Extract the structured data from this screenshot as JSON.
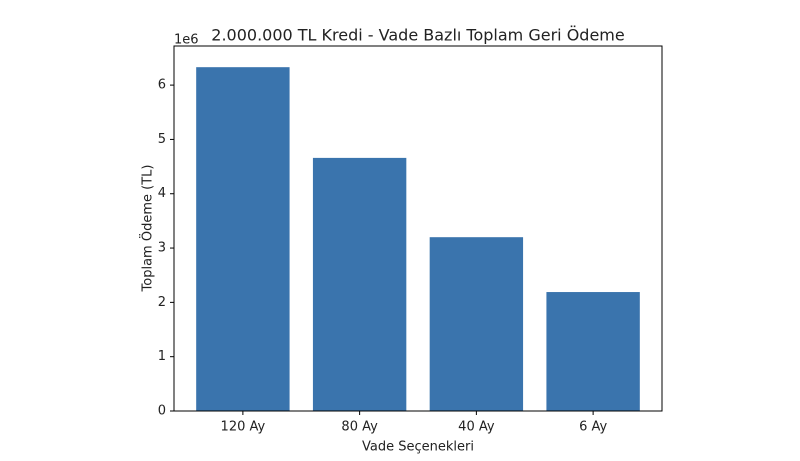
{
  "chart_data": {
    "type": "bar",
    "title": "2.000.000 TL Kredi - Vade Bazlı Toplam Geri Ödeme",
    "x_label": "Vade Seçenekleri",
    "y_label": "Toplam Ödeme (TL)",
    "y_offset_label": "1e6",
    "categories": [
      "120 Ay",
      "80 Ay",
      "40 Ay",
      "6 Ay"
    ],
    "values": [
      6.33,
      4.66,
      3.2,
      2.19
    ],
    "color": "#3a74ad",
    "ylim": [
      0,
      6.72
    ],
    "yticks": [
      0,
      1,
      2,
      3,
      4,
      5,
      6
    ],
    "grid": false
  }
}
